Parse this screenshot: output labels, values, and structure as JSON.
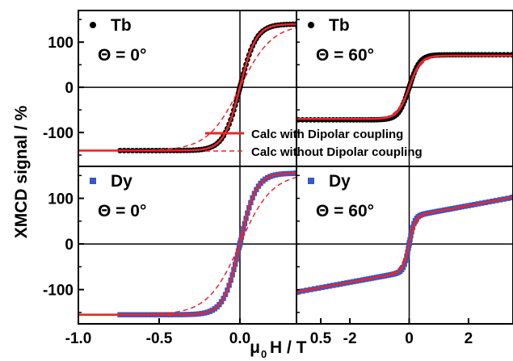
{
  "figure": {
    "ylabel": "XMCD signal / %",
    "xlabel_main": "H / T",
    "xlabel_sub": "0",
    "xlabel_prefix": "μ"
  },
  "legend": {
    "with_label": "Calc with Dipolar coupling",
    "without_label": "Calc without Dipolar coupling",
    "with_color": "#e8262b",
    "without_color": "#e8262b"
  },
  "colors": {
    "tb_points": "#000000",
    "dy_points": "#3a56c4",
    "calc": "#e8262b"
  },
  "chart_data": [
    {
      "type": "scatter",
      "panel": "top-left",
      "element": "Tb",
      "angle_label": "Θ = 0°",
      "xlim": [
        -1.0,
        0.35
      ],
      "ylim": [
        -175,
        170
      ],
      "x_ticks": [],
      "y_ticks": [
        -100,
        0,
        100
      ],
      "series": [
        {
          "kind": "experiment",
          "marker": "circle",
          "color": "#000000",
          "sat": 140,
          "width": 0.1
        },
        {
          "name": "Calc with Dipolar coupling",
          "kind": "calc-with",
          "color": "#e8262b",
          "sat": 140,
          "width": 0.1
        },
        {
          "name": "Calc without Dipolar coupling",
          "kind": "calc-without",
          "color": "#e8262b",
          "sat": 140,
          "width": 0.2
        }
      ]
    },
    {
      "type": "scatter",
      "panel": "top-right",
      "element": "Tb",
      "angle_label": "Θ = 60°",
      "xlim": [
        -3.8,
        3.5
      ],
      "ylim": [
        -175,
        170
      ],
      "x_ticks": [],
      "y_ticks": [],
      "series": [
        {
          "kind": "experiment",
          "marker": "circle",
          "color": "#000000",
          "sat": 72,
          "width": 0.35
        },
        {
          "name": "Calc with Dipolar coupling",
          "kind": "calc-with",
          "color": "#e8262b",
          "sat": 70,
          "width": 0.38
        },
        {
          "name": "Calc without Dipolar coupling",
          "kind": "calc-without",
          "color": "#e8262b",
          "sat": 70,
          "width": 0.45
        }
      ]
    },
    {
      "type": "scatter",
      "panel": "bottom-left",
      "element": "Dy",
      "angle_label": "Θ = 0°",
      "xlim": [
        -1.0,
        0.35
      ],
      "ylim": [
        -175,
        170
      ],
      "x_ticks": [
        "-1.0",
        "-0.5",
        "0.0",
        "0.5"
      ],
      "y_ticks": [
        -100,
        0,
        100
      ],
      "series": [
        {
          "kind": "experiment",
          "marker": "square",
          "color": "#3a56c4",
          "sat": 155,
          "width": 0.1
        },
        {
          "name": "Calc with Dipolar coupling",
          "kind": "calc-with",
          "color": "#e8262b",
          "sat": 155,
          "width": 0.1
        },
        {
          "name": "Calc without Dipolar coupling",
          "kind": "calc-without",
          "color": "#e8262b",
          "sat": 155,
          "width": 0.2
        }
      ]
    },
    {
      "type": "scatter",
      "panel": "bottom-right",
      "element": "Dy",
      "angle_label": "Θ = 60°",
      "xlim": [
        -3.8,
        3.5
      ],
      "ylim": [
        -175,
        170
      ],
      "x_ticks": [
        "-2",
        "0",
        "2"
      ],
      "y_ticks": [],
      "series": [
        {
          "kind": "experiment",
          "marker": "square",
          "color": "#3a56c4",
          "sat": 60,
          "width": 0.18,
          "slope": 12
        },
        {
          "name": "Calc with Dipolar coupling",
          "kind": "calc-with",
          "color": "#e8262b",
          "sat": 60,
          "width": 0.2,
          "slope": 12
        },
        {
          "name": "Calc without Dipolar coupling",
          "kind": "calc-without",
          "color": "#e8262b",
          "sat": 60,
          "width": 0.3,
          "slope": 12
        }
      ]
    }
  ]
}
